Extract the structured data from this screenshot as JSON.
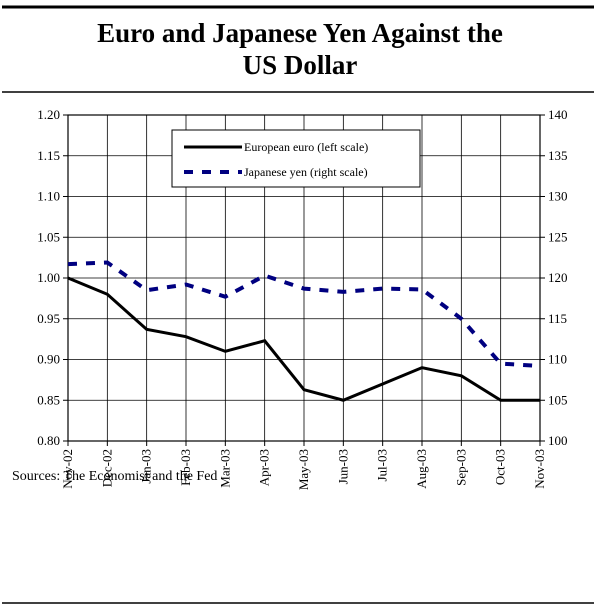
{
  "chart_data": {
    "type": "line",
    "title": "Euro and Japanese Yen Against the US Dollar",
    "source": "Sources: The Economist and the Fed",
    "categories": [
      "Nov-02",
      "Dec-02",
      "Jan-03",
      "Feb-03",
      "Mar-03",
      "Apr-03",
      "May-03",
      "Jun-03",
      "Jul-03",
      "Aug-03",
      "Sep-03",
      "Oct-03",
      "Nov-03"
    ],
    "series": [
      {
        "name": "European euro (left scale)",
        "color": "#000000",
        "values": [
          1.0,
          0.98,
          0.937,
          0.928,
          0.91,
          0.923,
          0.863,
          0.85,
          0.87,
          0.89,
          0.88,
          0.85,
          0.85
        ]
      },
      {
        "name": "Japanese yen (right scale)",
        "color": "#000080",
        "axis": "y2",
        "dashed": true,
        "values": [
          121.7,
          121.9,
          118.5,
          119.2,
          117.7,
          120.3,
          118.7,
          118.3,
          118.7,
          118.6,
          115,
          109.5,
          109.2
        ]
      }
    ],
    "ylim": [
      0.8,
      1.2
    ],
    "yticks": [
      {
        "value": 0.8,
        "label": "0.80"
      },
      {
        "value": 0.85,
        "label": "0.85"
      },
      {
        "value": 0.9,
        "label": "0.90"
      },
      {
        "value": 0.95,
        "label": "0.95"
      },
      {
        "value": 1.0,
        "label": "1.00"
      },
      {
        "value": 1.05,
        "label": "1.05"
      },
      {
        "value": 1.1,
        "label": "1.10"
      },
      {
        "value": 1.15,
        "label": "1.15"
      },
      {
        "value": 1.2,
        "label": "1.20"
      }
    ],
    "y2lim": [
      100,
      140
    ],
    "y2ticks": [
      100,
      105,
      110,
      115,
      120,
      125,
      130,
      135,
      140
    ],
    "grid": true,
    "legend": "upper center"
  }
}
